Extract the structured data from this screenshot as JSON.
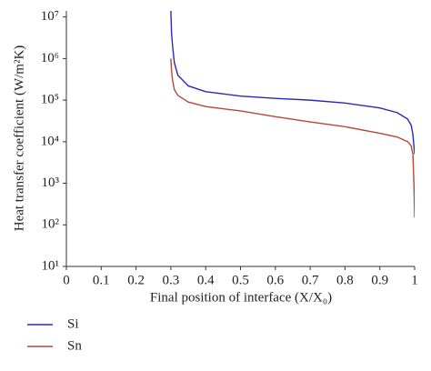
{
  "chart_data": {
    "type": "line",
    "xlabel": "Final position of interface (X/X₀)",
    "ylabel": "Heat transfer coefficient (W/m²K)",
    "xlim": [
      0,
      1
    ],
    "xticks": [
      0,
      0.1,
      0.2,
      0.3,
      0.4,
      0.5,
      0.6,
      0.7,
      0.8,
      0.9,
      1
    ],
    "ylim": [
      10,
      14000000
    ],
    "ylog": true,
    "yticks": [
      {
        "value": 10,
        "label": "10¹"
      },
      {
        "value": 100,
        "label": "10²"
      },
      {
        "value": 1000,
        "label": "10³"
      },
      {
        "value": 10000,
        "label": "10⁴"
      },
      {
        "value": 100000,
        "label": "10⁵"
      },
      {
        "value": 1000000,
        "label": "10⁶"
      },
      {
        "value": 10000000,
        "label": "10⁷"
      }
    ],
    "legend": "bottom-left",
    "series": [
      {
        "name": "Si",
        "color": "#2a2ab8",
        "x": [
          0.3,
          0.302,
          0.305,
          0.31,
          0.32,
          0.35,
          0.4,
          0.5,
          0.6,
          0.7,
          0.8,
          0.9,
          0.95,
          0.98,
          0.99,
          0.995,
          1.0
        ],
        "values": [
          14000000,
          4000000,
          2000000,
          800000,
          400000,
          220000,
          160000,
          125000,
          110000,
          100000,
          85000,
          65000,
          50000,
          35000,
          25000,
          15000,
          5000
        ]
      },
      {
        "name": "Sn",
        "color": "#b8463a",
        "x": [
          0.3,
          0.302,
          0.305,
          0.31,
          0.32,
          0.35,
          0.4,
          0.5,
          0.6,
          0.7,
          0.8,
          0.9,
          0.95,
          0.98,
          0.99,
          0.995,
          0.998,
          1.0
        ],
        "values": [
          1000000,
          500000,
          300000,
          180000,
          130000,
          90000,
          70000,
          55000,
          40000,
          30000,
          23000,
          16000,
          13000,
          10000,
          8000,
          5000,
          1000,
          150
        ]
      }
    ]
  }
}
